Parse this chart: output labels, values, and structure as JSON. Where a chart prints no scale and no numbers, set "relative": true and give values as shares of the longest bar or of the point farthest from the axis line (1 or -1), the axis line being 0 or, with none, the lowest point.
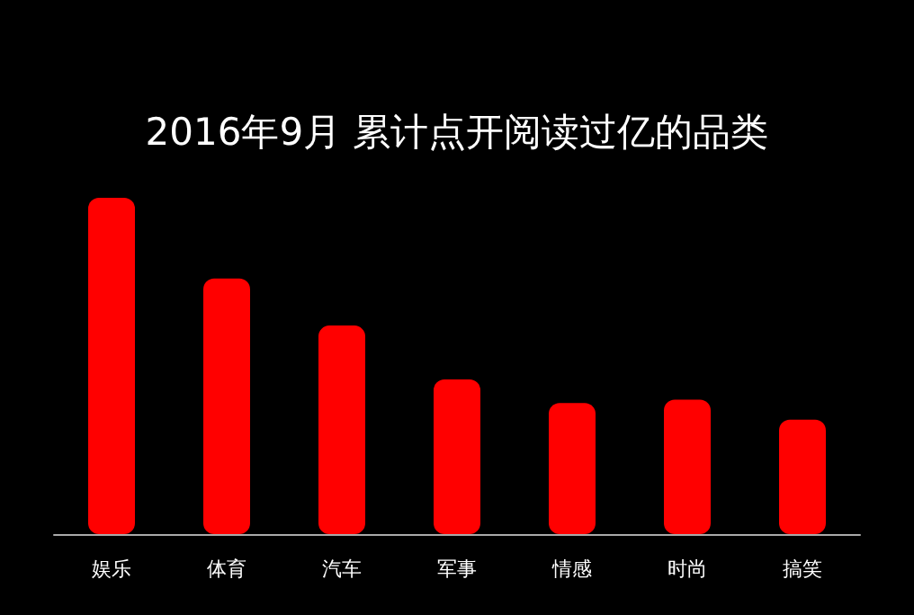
{
  "chart_data": {
    "type": "bar",
    "title": "2016年9月 累计点开阅读过亿的品类",
    "categories": [
      "娱乐",
      "体育",
      "汽车",
      "军事",
      "情感",
      "时尚",
      "搞笑"
    ],
    "values": [
      1,
      0.76,
      0.62,
      0.46,
      0.39,
      0.4,
      0.34
    ],
    "color": "#ff0000",
    "relative": true
  }
}
